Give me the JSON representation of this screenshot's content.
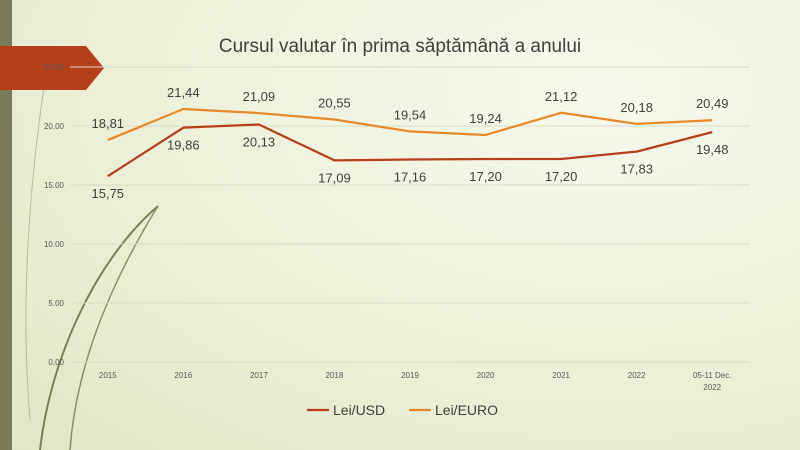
{
  "chart_data": {
    "type": "line",
    "title": "Cursul valutar în prima săptămână a anului",
    "categories": [
      "2015",
      "2016",
      "2017",
      "2018",
      "2019",
      "2020",
      "2021",
      "2022",
      [
        "05-11 Dec.",
        "2022"
      ]
    ],
    "y_ticks": [
      "0.00",
      "5.00",
      "10.00",
      "15.00",
      "20.00",
      "25.00"
    ],
    "ylim": [
      0,
      25
    ],
    "grid": true,
    "legend_position": "bottom",
    "series": [
      {
        "name": "Lei/USD",
        "color": "#b5401b",
        "values": [
          15.75,
          19.86,
          20.13,
          17.09,
          17.16,
          17.2,
          17.2,
          17.83,
          19.48
        ],
        "labels": [
          "15,75",
          "19,86",
          "20,13",
          "17,09",
          "17,16",
          "17,20",
          "17,20",
          "17,83",
          "19,48"
        ]
      },
      {
        "name": "Lei/EURO",
        "color": "#e6892a",
        "values": [
          18.81,
          21.44,
          21.09,
          20.55,
          19.54,
          19.24,
          21.12,
          20.18,
          20.49
        ],
        "labels": [
          "18,81",
          "21,44",
          "21,09",
          "20,55",
          "19,54",
          "19,24",
          "21,12",
          "20,18",
          "20,49"
        ]
      }
    ]
  }
}
